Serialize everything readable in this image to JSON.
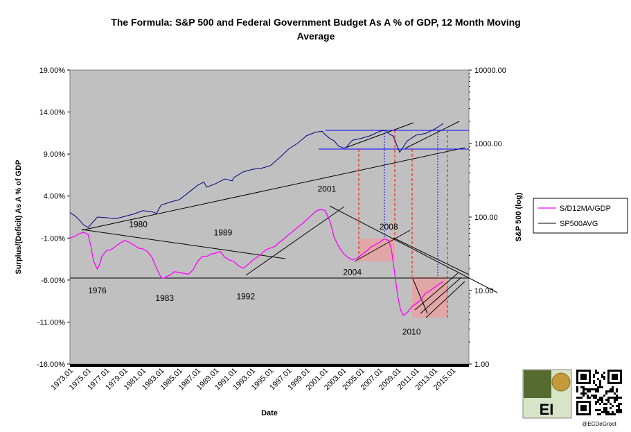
{
  "chart_data": {
    "type": "line",
    "title_lines": [
      "The Formula:  S&P 500 and Federal Government Budget As A % of GDP, 12 Month Moving",
      "Average"
    ],
    "xlabel": "Date",
    "ylabel_left": "Surplus/(Deficit) As A %  of GDP",
    "ylabel_right": "S&P 500 (log)",
    "xlim": [
      1973.0,
      2016.8
    ],
    "ylim_left": [
      -16,
      19
    ],
    "ylim_right": [
      1,
      10000
    ],
    "right_scale": "log",
    "grid": false,
    "legend_position": "right",
    "x_tick_labels": [
      "1973.01",
      "1975.01",
      "1977.01",
      "1979.01",
      "1981.01",
      "1983.01",
      "1985.01",
      "1987.01",
      "1989.01",
      "1991.01",
      "1993.01",
      "1995.01",
      "1997.01",
      "1999.01",
      "2001.01",
      "2003.01",
      "2005.01",
      "2007.01",
      "2009.01",
      "2011.01",
      "2013.01",
      "2015.01"
    ],
    "x_tick_values": [
      1973,
      1975,
      1977,
      1979,
      1981,
      1983,
      1985,
      1987,
      1989,
      1991,
      1993,
      1995,
      1997,
      1999,
      2001,
      2003,
      2005,
      2007,
      2009,
      2011,
      2013,
      2015
    ],
    "y_left_ticks": [
      {
        "value": 19,
        "label": "19.00%"
      },
      {
        "value": 14,
        "label": "14.00%"
      },
      {
        "value": 9,
        "label": "9.00%"
      },
      {
        "value": 4,
        "label": "4.00%"
      },
      {
        "value": -1,
        "label": "-1.00%"
      },
      {
        "value": -6,
        "label": "-6.00%"
      },
      {
        "value": -11,
        "label": "-11.00%"
      },
      {
        "value": -16,
        "label": "-16.00%"
      }
    ],
    "y_right_ticks": [
      {
        "value": 10000,
        "label": "10000.00"
      },
      {
        "value": 1000,
        "label": "1000.00"
      },
      {
        "value": 100,
        "label": "100.00"
      },
      {
        "value": 10,
        "label": "10.00"
      },
      {
        "value": 1,
        "label": "1.00"
      }
    ],
    "series": [
      {
        "name": "S/D12MA/GDP",
        "axis": "left",
        "color": "#ff00ff",
        "x": [
          1973.0,
          1973.5,
          1974.0,
          1974.5,
          1975.0,
          1975.3,
          1975.6,
          1976.0,
          1976.3,
          1976.5,
          1977.0,
          1977.5,
          1978.0,
          1978.5,
          1979.0,
          1979.5,
          1980.0,
          1980.5,
          1981.0,
          1981.5,
          1982.0,
          1982.5,
          1983.0,
          1983.3,
          1983.6,
          1984.0,
          1984.5,
          1985.0,
          1985.5,
          1986.0,
          1986.5,
          1987.0,
          1987.5,
          1988.0,
          1988.5,
          1989.0,
          1989.5,
          1990.0,
          1990.5,
          1991.0,
          1991.5,
          1992.0,
          1992.5,
          1993.0,
          1993.5,
          1994.0,
          1994.5,
          1995.0,
          1995.5,
          1996.0,
          1996.5,
          1997.0,
          1997.5,
          1998.0,
          1998.5,
          1999.0,
          1999.5,
          2000.0,
          2000.5,
          2001.0,
          2001.3,
          2001.6,
          2002.0,
          2002.5,
          2003.0,
          2003.5,
          2004.0,
          2004.5,
          2005.0,
          2005.5,
          2006.0,
          2006.5,
          2007.0,
          2007.5,
          2008.0,
          2008.3,
          2008.6,
          2009.0,
          2009.3,
          2009.6,
          2010.0,
          2010.3,
          2010.6,
          2011.0,
          2011.5,
          2012.0,
          2012.5,
          2013.0,
          2013.5,
          2014.0
        ],
        "y": [
          -1.0,
          -0.8,
          -0.5,
          -0.3,
          -0.6,
          -2.0,
          -3.8,
          -4.7,
          -4.0,
          -3.2,
          -2.5,
          -2.4,
          -2.0,
          -1.6,
          -1.3,
          -1.5,
          -1.8,
          -2.2,
          -2.3,
          -2.6,
          -3.3,
          -4.6,
          -5.7,
          -5.8,
          -5.6,
          -5.4,
          -5.0,
          -5.1,
          -5.2,
          -5.3,
          -4.8,
          -3.8,
          -3.2,
          -3.2,
          -2.9,
          -2.8,
          -2.6,
          -3.3,
          -3.6,
          -3.8,
          -4.3,
          -4.6,
          -4.2,
          -3.7,
          -3.3,
          -2.9,
          -2.4,
          -2.2,
          -2.0,
          -1.5,
          -1.1,
          -0.6,
          -0.2,
          0.3,
          0.7,
          1.2,
          1.7,
          2.2,
          2.4,
          2.3,
          1.6,
          0.8,
          -0.9,
          -2.0,
          -2.8,
          -3.3,
          -3.6,
          -3.4,
          -3.0,
          -2.6,
          -2.1,
          -1.8,
          -1.5,
          -1.1,
          -1.3,
          -2.4,
          -4.8,
          -8.0,
          -9.6,
          -10.2,
          -9.9,
          -9.5,
          -9.1,
          -8.8,
          -8.4,
          -7.6,
          -7.3,
          -6.9,
          -6.5,
          -6.2
        ]
      },
      {
        "name": "SP500AVG",
        "axis": "right",
        "color": "#000080",
        "x": [
          1973.0,
          1973.5,
          1974.0,
          1974.5,
          1975.0,
          1975.5,
          1976.0,
          1977.0,
          1978.0,
          1979.0,
          1980.0,
          1981.0,
          1982.0,
          1982.5,
          1983.0,
          1984.0,
          1985.0,
          1986.0,
          1987.0,
          1987.7,
          1988.0,
          1989.0,
          1990.0,
          1990.8,
          1991.0,
          1992.0,
          1993.0,
          1994.0,
          1995.0,
          1996.0,
          1997.0,
          1998.0,
          1999.0,
          2000.0,
          2000.7,
          2001.0,
          2001.5,
          2002.0,
          2002.5,
          2003.0,
          2003.3,
          2004.0,
          2005.0,
          2006.0,
          2007.0,
          2007.7,
          2008.0,
          2008.5,
          2009.0,
          2009.2,
          2009.6,
          2010.0,
          2011.0,
          2012.0,
          2013.0,
          2014.0
        ],
        "y": [
          115,
          105,
          92,
          78,
          72,
          85,
          100,
          98,
          95,
          102,
          110,
          122,
          118,
          112,
          145,
          160,
          172,
          215,
          270,
          300,
          255,
          285,
          330,
          310,
          345,
          410,
          445,
          460,
          500,
          640,
          840,
          1010,
          1280,
          1430,
          1470,
          1330,
          1180,
          1090,
          920,
          870,
          880,
          1110,
          1180,
          1280,
          1470,
          1520,
          1360,
          1260,
          880,
          760,
          900,
          1080,
          1300,
          1370,
          1560,
          1870
        ]
      }
    ],
    "annotations": [
      {
        "text": "1976",
        "x": 1976.0,
        "y": -7.6
      },
      {
        "text": "1980",
        "x": 1980.5,
        "y": 0.3
      },
      {
        "text": "1983",
        "x": 1983.4,
        "y": -8.5
      },
      {
        "text": "1989",
        "x": 1989.8,
        "y": -0.7
      },
      {
        "text": "1992",
        "x": 1992.3,
        "y": -8.3
      },
      {
        "text": "2001",
        "x": 2001.2,
        "y": 4.5
      },
      {
        "text": "2004",
        "x": 2004.0,
        "y": -5.4
      },
      {
        "text": "2008",
        "x": 2008.0,
        "y": 0.0
      },
      {
        "text": "2010",
        "x": 2010.5,
        "y": -12.5
      }
    ]
  },
  "legend": {
    "items": [
      {
        "label": "S/D12MA/GDP",
        "color": "#ff00ff"
      },
      {
        "label": "SP500AVG",
        "color": "#000000"
      }
    ]
  },
  "credit": "@ECDeGroot",
  "logo_letters": "EI"
}
